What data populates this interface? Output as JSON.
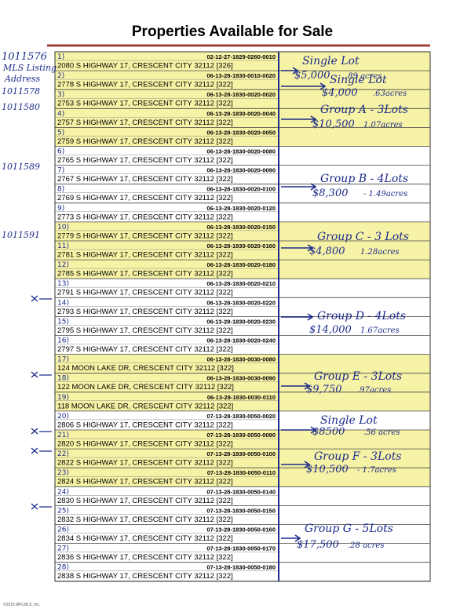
{
  "title": "Properties Available for Sale",
  "rows": [
    {
      "number": "1)",
      "parcel": "02-12-27-1829-0260-0010",
      "address": "2080 S HIGHWAY 17, CRESCENT CITY 32112 [326]"
    },
    {
      "number": "2)",
      "parcel": "06-13-28-1830-0010-0020",
      "address": "2778 S HIGHWAY 17, CRESCENT CITY 32112 [322]"
    },
    {
      "number": "3)",
      "parcel": "06-13-28-1830-0020-0020",
      "address": "2753 S HIGHWAY 17, CRESCENT CITY 32112 [322]"
    },
    {
      "number": "4)",
      "parcel": "06-13-28-1830-0020-0040",
      "address": "2757 S HIGHWAY 17, CRESCENT CITY 32112 [322]"
    },
    {
      "number": "5)",
      "parcel": "06-13-28-1830-0020-0050",
      "address": "2759 S HIGHWAY 17, CRESCENT CITY 32112 [322]"
    },
    {
      "number": "6)",
      "parcel": "06-13-28-1830-0020-0080",
      "address": "2765 S HIGHWAY 17, CRESCENT CITY 32112 [322]"
    },
    {
      "number": "7)",
      "parcel": "06-13-28-1830-0020-0090",
      "address": "2767 S HIGHWAY 17, CRESCENT CITY 32112 [322]"
    },
    {
      "number": "8)",
      "parcel": "06-13-28-1830-0020-0100",
      "address": "2769 S HIGHWAY 17, CRESCENT CITY 32112 [322]"
    },
    {
      "number": "9)",
      "parcel": "06-13-28-1830-0020-0120",
      "address": "2773 S HIGHWAY 17, CRESCENT CITY 32112 [322]"
    },
    {
      "number": "10)",
      "parcel": "06-13-28-1830-0020-0150",
      "address": "2779 S HIGHWAY 17, CRESCENT CITY 32112 [322]"
    },
    {
      "number": "11)",
      "parcel": "06-13-28-1830-0020-0160",
      "address": "2781 S HIGHWAY 17, CRESCENT CITY 32112 [322]"
    },
    {
      "number": "12)",
      "parcel": "06-13-28-1830-0020-0180",
      "address": "2785 S HIGHWAY 17, CRESCENT CITY 32112 [322]"
    },
    {
      "number": "13)",
      "parcel": "06-13-28-1830-0020-0210",
      "address": "2791 S HIGHWAY 17, CRESCENT CITY 32112 [322]"
    },
    {
      "number": "14)",
      "parcel": "06-13-28-1830-0020-0220",
      "address": "2793 S HIGHWAY 17, CRESCENT CITY 32112 [322]"
    },
    {
      "number": "15)",
      "parcel": "06-13-28-1830-0020-0230",
      "address": "2795 S HIGHWAY 17, CRESCENT CITY 32112 [322]"
    },
    {
      "number": "16)",
      "parcel": "06-13-28-1830-0020-0240",
      "address": "2797 S HIGHWAY 17, CRESCENT CITY 32112 [322]"
    },
    {
      "number": "17)",
      "parcel": "06-13-28-1830-0030-0080",
      "address": "124 MOON LAKE DR, CRESCENT CITY 32112 [322]"
    },
    {
      "number": "18)",
      "parcel": "06-13-28-1830-0030-0090",
      "address": "122 MOON LAKE DR, CRESCENT CITY 32112 [322]"
    },
    {
      "number": "19)",
      "parcel": "06-13-28-1830-0030-0110",
      "address": "118 MOON LAKE DR, CRESCENT CITY 32112 [322]"
    },
    {
      "number": "20)",
      "parcel": "07-13-28-1830-0050-0020",
      "address": "2806 S HIGHWAY 17, CRESCENT CITY 32112 [322]"
    },
    {
      "number": "21)",
      "parcel": "07-13-28-1830-0050-0090",
      "address": "2820 S HIGHWAY 17, CRESCENT CITY 32112 [322]"
    },
    {
      "number": "22)",
      "parcel": "07-13-28-1830-0050-0100",
      "address": "2822 S HIGHWAY 17, CRESCENT CITY 32112 [322]"
    },
    {
      "number": "23)",
      "parcel": "07-13-28-1830-0050-0110",
      "address": "2824 S HIGHWAY 17, CRESCENT CITY 32112 [322]"
    },
    {
      "number": "24)",
      "parcel": "07-13-28-1830-0050-0140",
      "address": "2830 S HIGHWAY 17, CRESCENT CITY 32112 [322]"
    },
    {
      "number": "25)",
      "parcel": "07-13-28-1830-0050-0150",
      "address": "2832 S HIGHWAY 17, CRESCENT CITY 32112 [322]"
    },
    {
      "number": "26)",
      "parcel": "07-13-28-1830-0050-0160",
      "address": "2834 S HIGHWAY 17, CRESCENT CITY 32112 [322]"
    },
    {
      "number": "27)",
      "parcel": "07-13-28-1830-0050-0170",
      "address": "2836 S HIGHWAY 17, CRESCENT CITY 32112 [322]"
    },
    {
      "number": "28)",
      "parcel": "07-13-28-1830-0050-0180",
      "address": "2838 S HIGHWAY 17, CRESCENT CITY 32112 [322]"
    }
  ],
  "annotations": [
    {
      "label": "Single Lot",
      "price": "$5,000",
      "acres": ".89 acres"
    },
    {
      "label": "Single Lot",
      "price": "$4,000",
      "acres": ".63acres"
    },
    {
      "label": "Group A - 3Lots",
      "price": "$10,500",
      "acres": "1.07acres"
    },
    {
      "label": "Group B - 4Lots",
      "price": "$8,300",
      "acres": "- 1.49acres"
    },
    {
      "label": "Group C - 3 Lots",
      "price": "$4,800",
      "acres": "1.28acres"
    },
    {
      "label": "Group D - 4Lots",
      "price": "$14,000",
      "acres": "1.67acres"
    },
    {
      "label": "Group E - 3Lots",
      "price": "$9,750",
      "acres": ".97acres"
    },
    {
      "label": "Single Lot",
      "price": "$8500",
      "acres": ".56 acres"
    },
    {
      "label": "Group F - 3Lots",
      "price": "$10,500",
      "acres": "- 1.7acres"
    },
    {
      "label": "Group G - 5Lots",
      "price": "$17,500",
      "acres": ".28 acres"
    }
  ],
  "margin_notes": [
    "1011576",
    "MLS Listing",
    "Address",
    "1011578",
    "1011580",
    "1011589",
    "1011591"
  ],
  "footer": "©2015 MFLMLS, Inc."
}
